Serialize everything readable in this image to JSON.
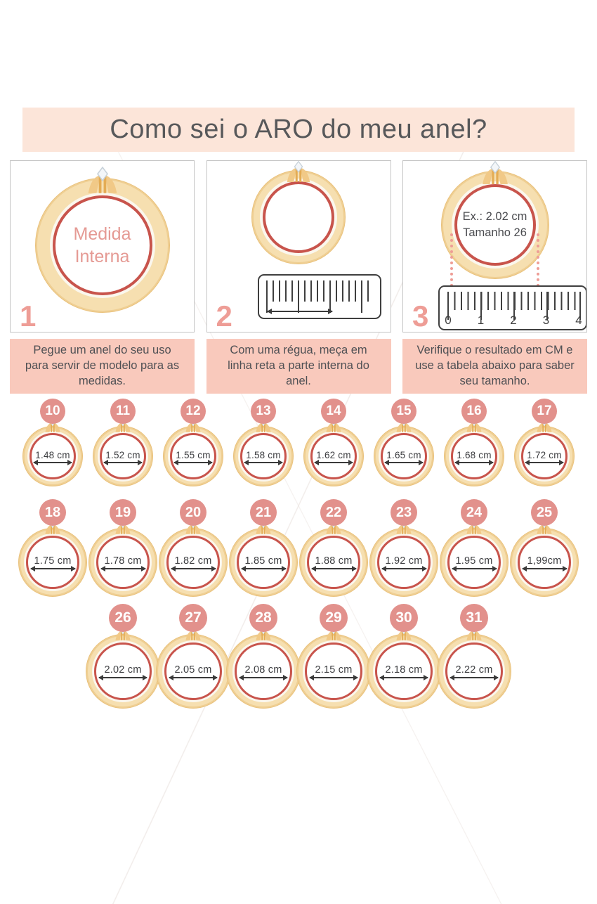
{
  "page": {
    "title": "Como sei o ARO do meu anel?"
  },
  "steps": [
    {
      "number": "1",
      "ring_text_line1": "Medida",
      "ring_text_line2": "Interna",
      "caption": "Pegue um anel do seu uso para servir de modelo para as medidas."
    },
    {
      "number": "2",
      "caption": "Com uma régua, meça em linha reta a parte interna do anel."
    },
    {
      "number": "3",
      "ring_text_line1": "Ex.: 2.02 cm",
      "ring_text_line2": "Tamanho 26",
      "ruler_numbers": [
        "0",
        "1",
        "2",
        "3",
        "4"
      ],
      "caption": "Verifique o resultado em CM e use a tabela abaixo para saber seu tamanho."
    }
  ],
  "size_chart": {
    "rows": [
      {
        "items": [
          {
            "size": "10",
            "measure": "1.48 cm"
          },
          {
            "size": "11",
            "measure": "1.52 cm"
          },
          {
            "size": "12",
            "measure": "1.55 cm"
          },
          {
            "size": "13",
            "measure": "1.58 cm"
          },
          {
            "size": "14",
            "measure": "1.62 cm"
          },
          {
            "size": "15",
            "measure": "1.65 cm"
          },
          {
            "size": "16",
            "measure": "1.68 cm"
          },
          {
            "size": "17",
            "measure": "1.72 cm"
          }
        ]
      },
      {
        "items": [
          {
            "size": "18",
            "measure": "1.75 cm"
          },
          {
            "size": "19",
            "measure": "1.78 cm"
          },
          {
            "size": "20",
            "measure": "1.82 cm"
          },
          {
            "size": "21",
            "measure": "1.85 cm"
          },
          {
            "size": "22",
            "measure": "1.88 cm"
          },
          {
            "size": "23",
            "measure": "1.92 cm"
          },
          {
            "size": "24",
            "measure": "1.95 cm"
          },
          {
            "size": "25",
            "measure": "1,99cm"
          }
        ]
      },
      {
        "items": [
          {
            "size": "26",
            "measure": "2.02 cm"
          },
          {
            "size": "27",
            "measure": "2.05 cm"
          },
          {
            "size": "28",
            "measure": "2.08 cm"
          },
          {
            "size": "29",
            "measure": "2.15 cm"
          },
          {
            "size": "30",
            "measure": "2.18 cm"
          },
          {
            "size": "31",
            "measure": "2.22 cm"
          }
        ]
      }
    ]
  },
  "icons": {
    "ring_crown": "diamond-icon",
    "measure_arrow": "double-arrow-icon"
  },
  "colors": {
    "banner_bg": "#fce5d9",
    "caption_bg": "#f9c9bc",
    "badge_bg": "#e2918c",
    "step_number": "#ee9d96",
    "ring_red": "#c8544c",
    "ring_gold": "#f6dfb0",
    "title_text": "#57585a",
    "body_text": "#4f5054"
  }
}
